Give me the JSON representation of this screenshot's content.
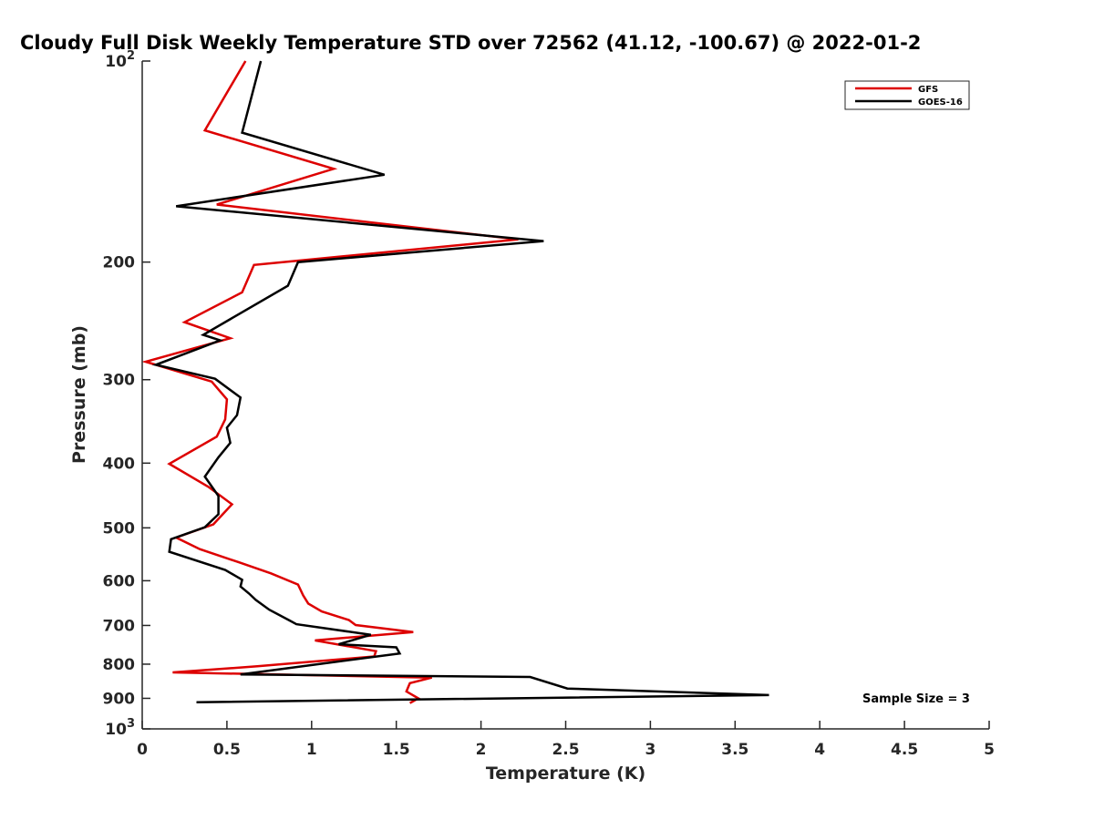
{
  "chart_data": {
    "type": "line",
    "title": "Cloudy Full Disk Weekly Temperature STD over 72562 (41.12, -100.67) @ 2022-01-2",
    "xlabel": "Temperature (K)",
    "ylabel": "Pressure (mb)",
    "xlim": [
      0,
      5
    ],
    "ylim": [
      100,
      1000
    ],
    "yscale": "log",
    "y_reversed": true,
    "x_ticks": [
      "0",
      "0.5",
      "1",
      "1.5",
      "2",
      "2.5",
      "3",
      "3.5",
      "4",
      "4.5",
      "5"
    ],
    "y_ticks": [
      {
        "value": 200,
        "label": "200"
      },
      {
        "value": 300,
        "label": "300"
      },
      {
        "value": 400,
        "label": "400"
      },
      {
        "value": 500,
        "label": "500"
      },
      {
        "value": 600,
        "label": "600"
      },
      {
        "value": 700,
        "label": "700"
      },
      {
        "value": 800,
        "label": "800"
      },
      {
        "value": 900,
        "label": "900"
      }
    ],
    "y_power_ticks": [
      {
        "value": 100,
        "base": "10",
        "exp": "2"
      },
      {
        "value": 1000,
        "base": "10",
        "exp": "3"
      }
    ],
    "legend_position": "top-right",
    "grid": false,
    "annotation": "Sample Size = 3",
    "series": [
      {
        "name": "GFS",
        "color": "#dd0000",
        "points": [
          [
            0.61,
            100
          ],
          [
            0.37,
            127
          ],
          [
            1.13,
            145
          ],
          [
            0.44,
            164
          ],
          [
            2.22,
            185
          ],
          [
            0.66,
            202
          ],
          [
            0.59,
            222
          ],
          [
            0.25,
            246
          ],
          [
            0.52,
            260
          ],
          [
            0.02,
            282
          ],
          [
            0.41,
            302
          ],
          [
            0.5,
            321
          ],
          [
            0.49,
            344
          ],
          [
            0.44,
            365
          ],
          [
            0.16,
            401
          ],
          [
            0.39,
            434
          ],
          [
            0.53,
            461
          ],
          [
            0.42,
            494
          ],
          [
            0.2,
            517
          ],
          [
            0.34,
            538
          ],
          [
            0.57,
            563
          ],
          [
            0.76,
            585
          ],
          [
            0.92,
            608
          ],
          [
            0.95,
            631
          ],
          [
            0.98,
            649
          ],
          [
            1.06,
            667
          ],
          [
            1.22,
            687
          ],
          [
            1.26,
            699
          ],
          [
            1.6,
            716
          ],
          [
            1.02,
            737
          ],
          [
            1.38,
            765
          ],
          [
            1.37,
            779
          ],
          [
            0.68,
            806
          ],
          [
            0.18,
            823
          ],
          [
            1.71,
            838
          ],
          [
            1.58,
            854
          ],
          [
            1.56,
            879
          ],
          [
            1.63,
            900
          ],
          [
            1.58,
            915
          ]
        ]
      },
      {
        "name": "GOES-16",
        "color": "#000000",
        "points": [
          [
            0.7,
            100
          ],
          [
            0.59,
            128
          ],
          [
            1.43,
            148
          ],
          [
            0.2,
            165
          ],
          [
            2.37,
            186
          ],
          [
            0.92,
            200
          ],
          [
            0.86,
            217
          ],
          [
            0.36,
            257
          ],
          [
            0.46,
            262
          ],
          [
            0.08,
            285
          ],
          [
            0.43,
            299
          ],
          [
            0.58,
            319
          ],
          [
            0.56,
            339
          ],
          [
            0.5,
            354
          ],
          [
            0.52,
            373
          ],
          [
            0.45,
            392
          ],
          [
            0.37,
            419
          ],
          [
            0.45,
            448
          ],
          [
            0.45,
            477
          ],
          [
            0.37,
            499
          ],
          [
            0.17,
            520
          ],
          [
            0.16,
            543
          ],
          [
            0.49,
            578
          ],
          [
            0.59,
            598
          ],
          [
            0.58,
            612
          ],
          [
            0.63,
            627
          ],
          [
            0.67,
            641
          ],
          [
            0.75,
            663
          ],
          [
            0.87,
            688
          ],
          [
            0.91,
            697
          ],
          [
            1.35,
            723
          ],
          [
            1.16,
            747
          ],
          [
            1.5,
            755
          ],
          [
            1.52,
            771
          ],
          [
            0.58,
            829
          ],
          [
            2.29,
            836
          ],
          [
            2.51,
            870
          ],
          [
            3.7,
            890
          ],
          [
            0.32,
            912
          ]
        ]
      }
    ]
  }
}
